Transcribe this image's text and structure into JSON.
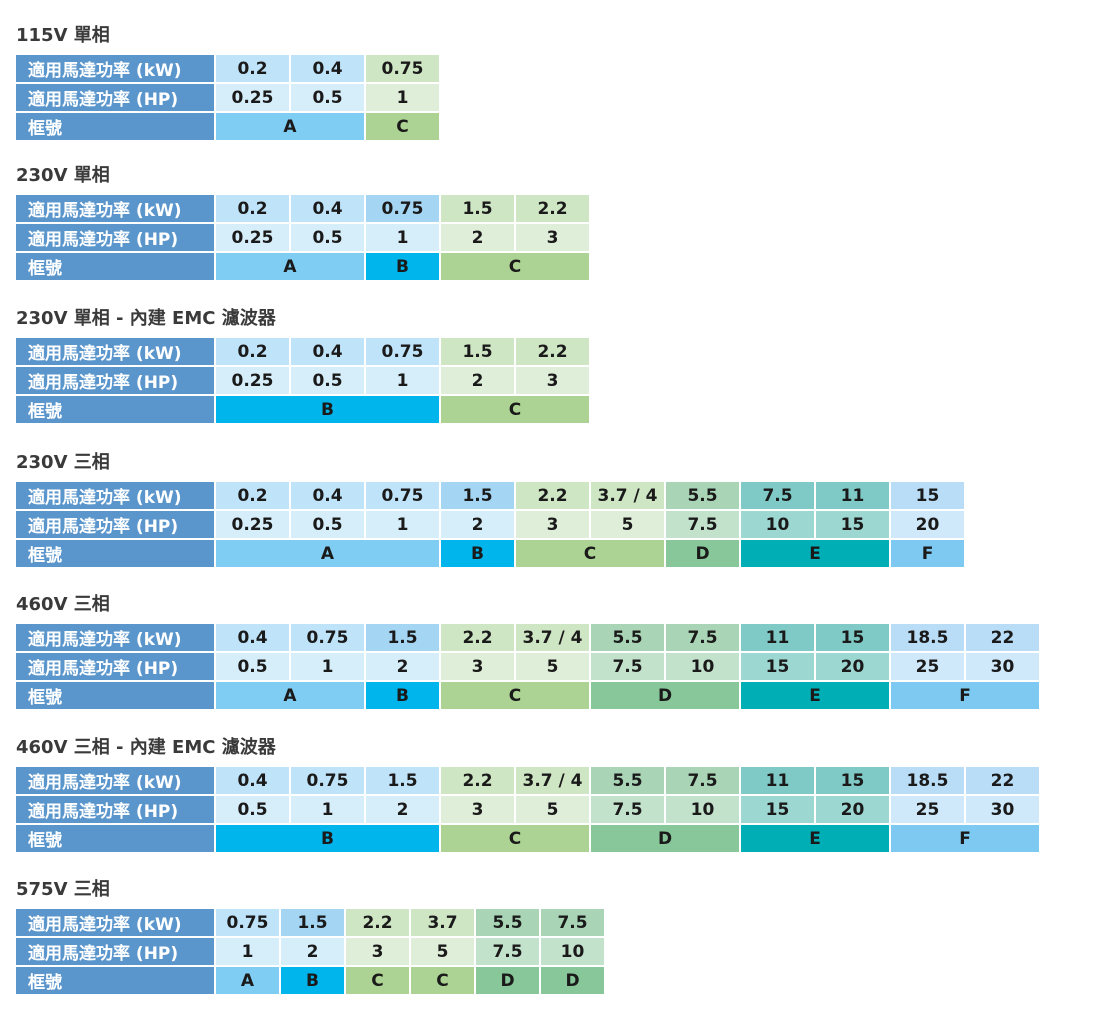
{
  "row_labels": {
    "kw": "適用馬達功率 (kW)",
    "hp": "適用馬達功率 (HP)",
    "frame": "框號"
  },
  "sections": [
    {
      "title": "115V 單相",
      "kw": [
        "0.2",
        "0.4",
        "0.75"
      ],
      "hp": [
        "0.25",
        "0.5",
        "1"
      ],
      "cols": [
        "l",
        "l",
        "g"
      ],
      "frames": [
        {
          "label": "A",
          "span": 2,
          "code": "A"
        },
        {
          "label": "C",
          "span": 1,
          "code": "C"
        }
      ]
    },
    {
      "title": "230V 單相",
      "kw": [
        "0.2",
        "0.4",
        "0.75",
        "1.5",
        "2.2"
      ],
      "hp": [
        "0.25",
        "0.5",
        "1",
        "2",
        "3"
      ],
      "cols": [
        "l",
        "l",
        "bm",
        "g",
        "g"
      ],
      "frames": [
        {
          "label": "A",
          "span": 2,
          "code": "A"
        },
        {
          "label": "B",
          "span": 1,
          "code": "B"
        },
        {
          "label": "C",
          "span": 2,
          "code": "C"
        }
      ]
    },
    {
      "title": "230V 單相 - 內建 EMC 濾波器",
      "kw": [
        "0.2",
        "0.4",
        "0.75",
        "1.5",
        "2.2"
      ],
      "hp": [
        "0.25",
        "0.5",
        "1",
        "2",
        "3"
      ],
      "cols": [
        "l",
        "l",
        "l",
        "g",
        "g"
      ],
      "frames": [
        {
          "label": "B",
          "span": 3,
          "code": "B"
        },
        {
          "label": "C",
          "span": 2,
          "code": "C"
        }
      ]
    },
    {
      "title": "230V 三相",
      "kw": [
        "0.2",
        "0.4",
        "0.75",
        "1.5",
        "2.2",
        "3.7 / 4",
        "5.5",
        "7.5",
        "11",
        "15"
      ],
      "hp": [
        "0.25",
        "0.5",
        "1",
        "2",
        "3",
        "5",
        "7.5",
        "10",
        "15",
        "20"
      ],
      "cols": [
        "l",
        "l",
        "l",
        "bm",
        "g",
        "g",
        "dg",
        "t",
        "t",
        "sky"
      ],
      "frames": [
        {
          "label": "A",
          "span": 3,
          "code": "A"
        },
        {
          "label": "B",
          "span": 1,
          "code": "B"
        },
        {
          "label": "C",
          "span": 2,
          "code": "C"
        },
        {
          "label": "D",
          "span": 1,
          "code": "D"
        },
        {
          "label": "E",
          "span": 2,
          "code": "E"
        },
        {
          "label": "F",
          "span": 1,
          "code": "F"
        }
      ]
    },
    {
      "title": "460V 三相",
      "kw": [
        "0.4",
        "0.75",
        "1.5",
        "2.2",
        "3.7 / 4",
        "5.5",
        "7.5",
        "11",
        "15",
        "18.5",
        "22"
      ],
      "hp": [
        "0.5",
        "1",
        "2",
        "3",
        "5",
        "7.5",
        "10",
        "15",
        "20",
        "25",
        "30"
      ],
      "cols": [
        "l",
        "l",
        "bm",
        "g",
        "g",
        "dg",
        "dg",
        "t",
        "t",
        "sky",
        "sky"
      ],
      "frames": [
        {
          "label": "A",
          "span": 2,
          "code": "A"
        },
        {
          "label": "B",
          "span": 1,
          "code": "B"
        },
        {
          "label": "C",
          "span": 2,
          "code": "C"
        },
        {
          "label": "D",
          "span": 2,
          "code": "D"
        },
        {
          "label": "E",
          "span": 2,
          "code": "E"
        },
        {
          "label": "F",
          "span": 2,
          "code": "F"
        }
      ]
    },
    {
      "title": "460V 三相 - 內建 EMC 濾波器",
      "kw": [
        "0.4",
        "0.75",
        "1.5",
        "2.2",
        "3.7 / 4",
        "5.5",
        "7.5",
        "11",
        "15",
        "18.5",
        "22"
      ],
      "hp": [
        "0.5",
        "1",
        "2",
        "3",
        "5",
        "7.5",
        "10",
        "15",
        "20",
        "25",
        "30"
      ],
      "cols": [
        "l",
        "l",
        "l",
        "g",
        "g",
        "dg",
        "dg",
        "t",
        "t",
        "sky",
        "sky"
      ],
      "frames": [
        {
          "label": "B",
          "span": 3,
          "code": "B"
        },
        {
          "label": "C",
          "span": 2,
          "code": "C"
        },
        {
          "label": "D",
          "span": 2,
          "code": "D"
        },
        {
          "label": "E",
          "span": 2,
          "code": "E"
        },
        {
          "label": "F",
          "span": 2,
          "code": "F"
        }
      ]
    },
    {
      "title": "575V 三相",
      "kw": [
        "0.75",
        "1.5",
        "2.2",
        "3.7",
        "5.5",
        "7.5"
      ],
      "hp": [
        "1",
        "2",
        "3",
        "5",
        "7.5",
        "10"
      ],
      "cols": [
        "l",
        "bm",
        "g",
        "g",
        "dg",
        "dg"
      ],
      "frames": [
        {
          "label": "A",
          "span": 1,
          "code": "A"
        },
        {
          "label": "B",
          "span": 1,
          "code": "B"
        },
        {
          "label": "C",
          "span": 1,
          "code": "C"
        },
        {
          "label": "C",
          "span": 1,
          "code": "C"
        },
        {
          "label": "D",
          "span": 1,
          "code": "D"
        },
        {
          "label": "D",
          "span": 1,
          "code": "D"
        }
      ]
    }
  ]
}
